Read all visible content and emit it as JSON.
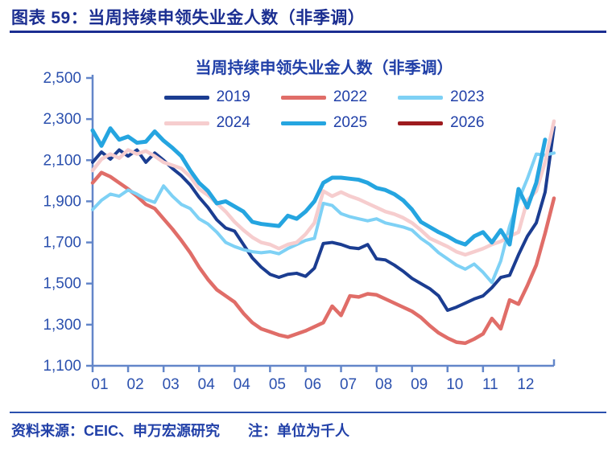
{
  "header": {
    "title": "图表 59：当周持续申领失业金人数（非季调）"
  },
  "footer": {
    "source": "资料来源：CEIC、申万宏源研究",
    "note": "注：单位为千人"
  },
  "colors": {
    "header_text": "#1b2e91",
    "body_text": "#2140a8",
    "axis_line": "#6386c9",
    "tick_label": "#2b50ae",
    "background": "#ffffff"
  },
  "chart_data": {
    "type": "line",
    "title": "当周持续申领失业金人数（非季调）",
    "xlabel": "",
    "ylabel": "",
    "unit_note": "千人",
    "ylim": [
      1100,
      2500
    ],
    "y_tick_values": [
      2500,
      2300,
      2100,
      1900,
      1700,
      1500,
      1300,
      1100
    ],
    "y_tick_labels": [
      "2,500",
      "2,300",
      "2,100",
      "1,900",
      "1,700",
      "1,500",
      "1,300",
      "1,100"
    ],
    "x_tick_labels": [
      "01",
      "02",
      "03",
      "04",
      "04",
      "05",
      "06",
      "07",
      "08",
      "09",
      "10",
      "11",
      "12"
    ],
    "x_weeks_total": 53,
    "x_ticks_every_n_weeks": 4,
    "grid": false,
    "legend_position": "top",
    "legend_rows": [
      [
        "2019",
        "2022",
        "2023"
      ],
      [
        "2024",
        "2025",
        "2026"
      ]
    ],
    "series": [
      {
        "name": "2019",
        "color": "#1b3d91",
        "width": 4,
        "values": [
          2090,
          2140,
          2105,
          2150,
          2120,
          2150,
          2090,
          2135,
          2100,
          2060,
          2025,
          1980,
          1920,
          1870,
          1810,
          1770,
          1755,
          1690,
          1625,
          1580,
          1545,
          1530,
          1545,
          1550,
          1535,
          1575,
          1695,
          1700,
          1690,
          1675,
          1670,
          1690,
          1620,
          1615,
          1590,
          1560,
          1525,
          1500,
          1475,
          1440,
          1370,
          1385,
          1405,
          1425,
          1440,
          1480,
          1530,
          1540,
          1640,
          1730,
          1795,
          1945,
          2260
        ]
      },
      {
        "name": "2022",
        "color": "#e06d68",
        "width": 4.5,
        "values": [
          1990,
          2040,
          2020,
          1990,
          1960,
          1925,
          1885,
          1865,
          1815,
          1765,
          1710,
          1650,
          1580,
          1520,
          1470,
          1440,
          1410,
          1355,
          1310,
          1280,
          1265,
          1250,
          1240,
          1255,
          1270,
          1290,
          1310,
          1390,
          1345,
          1440,
          1435,
          1450,
          1445,
          1425,
          1405,
          1385,
          1365,
          1335,
          1295,
          1260,
          1235,
          1215,
          1210,
          1230,
          1255,
          1330,
          1280,
          1420,
          1400,
          1490,
          1590,
          1745,
          1915
        ]
      },
      {
        "name": "2023",
        "color": "#7ed1f5",
        "width": 4,
        "values": [
          1860,
          1905,
          1935,
          1925,
          1955,
          1935,
          1910,
          1895,
          1975,
          1925,
          1885,
          1865,
          1815,
          1790,
          1750,
          1700,
          1680,
          1665,
          1655,
          1650,
          1655,
          1645,
          1670,
          1690,
          1710,
          1720,
          1890,
          1880,
          1840,
          1825,
          1815,
          1805,
          1815,
          1795,
          1785,
          1775,
          1760,
          1720,
          1690,
          1650,
          1620,
          1590,
          1570,
          1595,
          1555,
          1505,
          1610,
          1780,
          1905,
          2010,
          2130,
          2125,
          2135
        ]
      },
      {
        "name": "2024",
        "color": "#f6cdce",
        "width": 4.5,
        "values": [
          2050,
          2105,
          2130,
          2110,
          2150,
          2130,
          2145,
          2120,
          2090,
          2075,
          2060,
          2020,
          1960,
          1930,
          1890,
          1850,
          1800,
          1760,
          1725,
          1700,
          1690,
          1670,
          1690,
          1700,
          1740,
          1795,
          1950,
          1925,
          1945,
          1925,
          1910,
          1890,
          1870,
          1850,
          1838,
          1820,
          1795,
          1760,
          1720,
          1700,
          1680,
          1655,
          1640,
          1655,
          1670,
          1690,
          1705,
          1730,
          1750,
          1905,
          1950,
          2090,
          2290
        ]
      },
      {
        "name": "2025",
        "color": "#25a5e0",
        "width": 5,
        "values": [
          2245,
          2170,
          2255,
          2200,
          2215,
          2185,
          2190,
          2240,
          2195,
          2160,
          2120,
          2050,
          1990,
          1950,
          1890,
          1900,
          1875,
          1850,
          1800,
          1790,
          1785,
          1780,
          1830,
          1815,
          1850,
          1900,
          1990,
          2015,
          2015,
          2010,
          2005,
          1990,
          1965,
          1955,
          1935,
          1905,
          1860,
          1800,
          1775,
          1750,
          1730,
          1705,
          1690,
          1730,
          1750,
          1700,
          1760,
          1690,
          1960,
          1870,
          1990,
          2200
        ]
      },
      {
        "name": "2026",
        "color": "#9e1b1e",
        "width": 4.5,
        "values": []
      }
    ]
  }
}
